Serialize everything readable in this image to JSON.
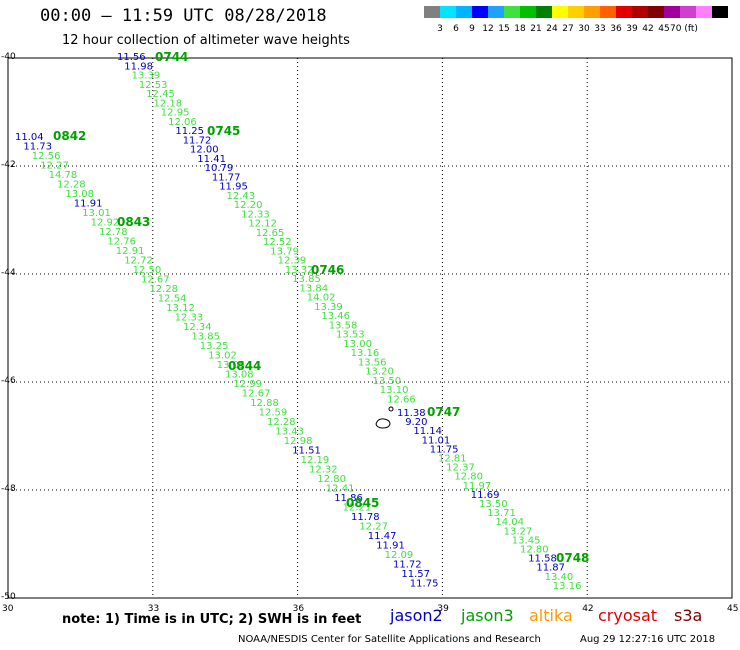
{
  "title": "00:00 – 11:59 UTC 08/28/2018",
  "subtitle": "12 hour collection of altimeter wave heights",
  "legend": {
    "colors": [
      "#808080",
      "#00e5ff",
      "#00b4ff",
      "#0000ff",
      "#20a0ff",
      "#40e040",
      "#00c000",
      "#008000",
      "#ffff00",
      "#ffd000",
      "#ffa000",
      "#ff6000",
      "#e00000",
      "#b00000",
      "#800000",
      "#a000a0",
      "#d040d0",
      "#ff80ff",
      "#000000"
    ],
    "labels": [
      "3",
      "6",
      "9",
      "12",
      "15",
      "18",
      "21",
      "24",
      "27",
      "30",
      "33",
      "36",
      "39",
      "42",
      "45",
      "70 (ft)"
    ]
  },
  "axes": {
    "lat_ticks": [
      "-40",
      "-42",
      "-44",
      "-46",
      "-48",
      "-50"
    ],
    "lon_ticks": [
      "30",
      "33",
      "36",
      "39",
      "42",
      "45"
    ]
  },
  "note": "note:  1) Time is in UTC;  2) SWH is in feet",
  "satellites": [
    {
      "name": "jason2",
      "color": "#0000c8"
    },
    {
      "name": "jason3",
      "color": "#00a000"
    },
    {
      "name": "altika",
      "color": "#ff9900"
    },
    {
      "name": "cryosat",
      "color": "#e00000"
    },
    {
      "name": "s3a",
      "color": "#800000"
    }
  ],
  "credit": "NOAA/NESDIS Center for Satellite Applications and Research",
  "stamp": "Aug 29 12:27:16 UTC 2018",
  "colors": {
    "jason2": "#0000c8",
    "jason3_label": "#00a000",
    "light_green": "#40e040"
  },
  "tracks": [
    {
      "time": "0744",
      "values": [
        [
          "11.56",
          "b"
        ],
        [
          "11.98",
          "b"
        ],
        [
          "13.39",
          "g"
        ],
        [
          "12.53",
          "g"
        ],
        [
          "12.45",
          "g"
        ],
        [
          "12.18",
          "g"
        ],
        [
          "12.95",
          "g"
        ],
        [
          "12.06",
          "g"
        ],
        [
          "11.25",
          "b"
        ],
        [
          "11.72",
          "b"
        ],
        [
          "12.00",
          "b"
        ],
        [
          "11.41",
          "b"
        ],
        [
          "10.79",
          "b"
        ],
        [
          "11.77",
          "b"
        ],
        [
          "11.95",
          "b"
        ],
        [
          "12.43",
          "g"
        ],
        [
          "12.20",
          "g"
        ],
        [
          "12.33",
          "g"
        ],
        [
          "12.12",
          "g"
        ],
        [
          "12.65",
          "g"
        ],
        [
          "12.52",
          "g"
        ],
        [
          "13.79",
          "g"
        ],
        [
          "12.39",
          "g"
        ],
        [
          "13.32",
          "g"
        ],
        [
          "13.85",
          "g"
        ],
        [
          "13.84",
          "g"
        ],
        [
          "14.02",
          "g"
        ],
        [
          "13.39",
          "g"
        ],
        [
          "13.46",
          "g"
        ],
        [
          "13.58",
          "g"
        ],
        [
          "13.53",
          "g"
        ],
        [
          "13.00",
          "g"
        ],
        [
          "13.16",
          "g"
        ],
        [
          "13.56",
          "g"
        ],
        [
          "13.20",
          "g"
        ],
        [
          "13.50",
          "g"
        ],
        [
          "13.10",
          "g"
        ],
        [
          "12.66",
          "g"
        ]
      ]
    },
    {
      "time": "0747",
      "values": [
        [
          "11.38",
          "b"
        ],
        [
          "9.20",
          "b"
        ],
        [
          "11.14",
          "b"
        ],
        [
          "11.01",
          "b"
        ],
        [
          "11.75",
          "b"
        ],
        [
          "12.81",
          "g"
        ],
        [
          "12.37",
          "g"
        ],
        [
          "12.80",
          "g"
        ],
        [
          "11.97",
          "g"
        ],
        [
          "11.69",
          "b"
        ],
        [
          "13.50",
          "g"
        ],
        [
          "13.71",
          "g"
        ],
        [
          "14.04",
          "g"
        ],
        [
          "13.27",
          "g"
        ],
        [
          "13.45",
          "g"
        ],
        [
          "12.80",
          "g"
        ],
        [
          "11.58",
          "b"
        ],
        [
          "11.87",
          "b"
        ],
        [
          "13.40",
          "g"
        ],
        [
          "13.16",
          "g"
        ]
      ]
    },
    {
      "time": "0842",
      "values": [
        [
          "11.04",
          "b"
        ],
        [
          "11.73",
          "b"
        ],
        [
          "12.56",
          "g"
        ],
        [
          "12.27",
          "g"
        ],
        [
          "14.78",
          "g"
        ],
        [
          "12.28",
          "g"
        ],
        [
          "13.08",
          "g"
        ],
        [
          "11.91",
          "b"
        ],
        [
          "13.01",
          "g"
        ],
        [
          "12.92",
          "g"
        ],
        [
          "12.78",
          "g"
        ],
        [
          "12.76",
          "g"
        ],
        [
          "12.91",
          "g"
        ],
        [
          "12.72",
          "g"
        ],
        [
          "12.50",
          "g"
        ],
        [
          "12.67",
          "g"
        ],
        [
          "12.28",
          "g"
        ],
        [
          "12.54",
          "g"
        ],
        [
          "13.12",
          "g"
        ],
        [
          "12.33",
          "g"
        ],
        [
          "12.34",
          "g"
        ],
        [
          "13.85",
          "g"
        ],
        [
          "13.25",
          "g"
        ],
        [
          "13.02",
          "g"
        ],
        [
          "13.05",
          "g"
        ],
        [
          "13.08",
          "g"
        ],
        [
          "12.99",
          "g"
        ],
        [
          "12.67",
          "g"
        ],
        [
          "12.88",
          "g"
        ],
        [
          "12.59",
          "g"
        ],
        [
          "12.28",
          "g"
        ],
        [
          "13.43",
          "g"
        ],
        [
          "12.98",
          "g"
        ],
        [
          "11.51",
          "b"
        ],
        [
          "12.19",
          "g"
        ],
        [
          "12.32",
          "g"
        ],
        [
          "12.80",
          "g"
        ],
        [
          "12.41",
          "g"
        ],
        [
          "11.86",
          "b"
        ],
        [
          "12.21",
          "g"
        ],
        [
          "11.78",
          "b"
        ],
        [
          "12.27",
          "g"
        ],
        [
          "11.47",
          "b"
        ],
        [
          "11.91",
          "b"
        ],
        [
          "12.09",
          "g"
        ],
        [
          "11.72",
          "b"
        ],
        [
          "11.57",
          "b"
        ],
        [
          "11.75",
          "b"
        ]
      ]
    }
  ],
  "time_labels": [
    "0744",
    "0745",
    "0746",
    "0747",
    "0748",
    "0842",
    "0843",
    "0844",
    "0845"
  ]
}
